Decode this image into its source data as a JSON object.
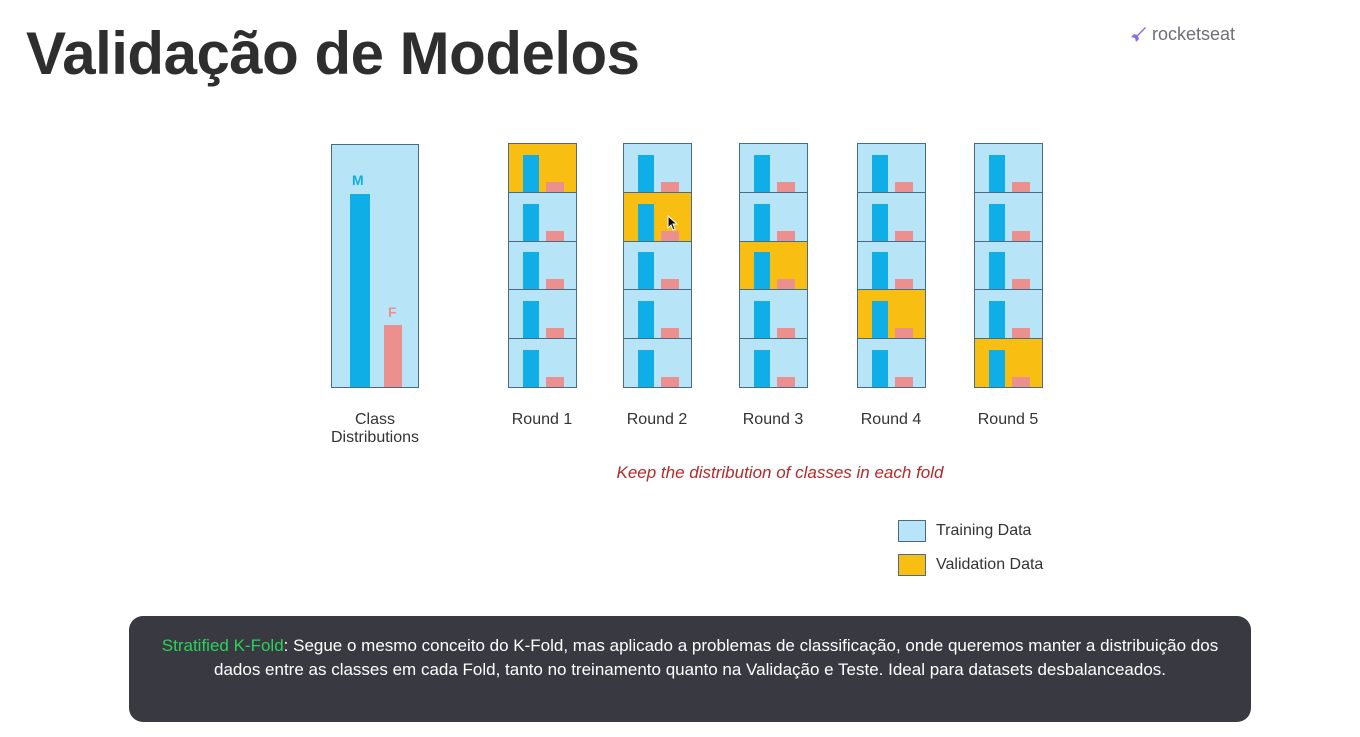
{
  "slide": {
    "title": "Validação de Modelos",
    "brand": "rocketseat"
  },
  "diagram": {
    "class_distribution": {
      "label": "Class Distributions",
      "classes": [
        {
          "name": "M",
          "color": "#10aee6"
        },
        {
          "name": "F",
          "color": "#ec8f8f"
        }
      ]
    },
    "rounds": [
      {
        "label": "Round 1",
        "validation_fold": 1
      },
      {
        "label": "Round 2",
        "validation_fold": 2
      },
      {
        "label": "Round 3",
        "validation_fold": 3
      },
      {
        "label": "Round 4",
        "validation_fold": 4
      },
      {
        "label": "Round 5",
        "validation_fold": 5
      }
    ],
    "folds_per_round": 5,
    "caption": "Keep the distribution of classes in each fold",
    "legend": [
      {
        "label": "Training Data",
        "color": "#b7e5f7"
      },
      {
        "label": "Validation Data",
        "color": "#f8be11"
      }
    ]
  },
  "subtitle": {
    "highlight": "Stratified K-Fold",
    "text": ": Segue o mesmo conceito do K-Fold, mas aplicado a problemas de classificação, onde queremos manter a distribuição dos dados entre as classes em cada Fold, tanto no treinamento quanto na Validação e Teste. Ideal para datasets desbalanceados."
  },
  "colors": {
    "training": "#b7e5f7",
    "validation": "#f8be11",
    "class_m": "#10aee6",
    "class_f": "#ec8f8f",
    "caption": "#b32a2a",
    "subtitle_highlight": "#2ad25a"
  }
}
